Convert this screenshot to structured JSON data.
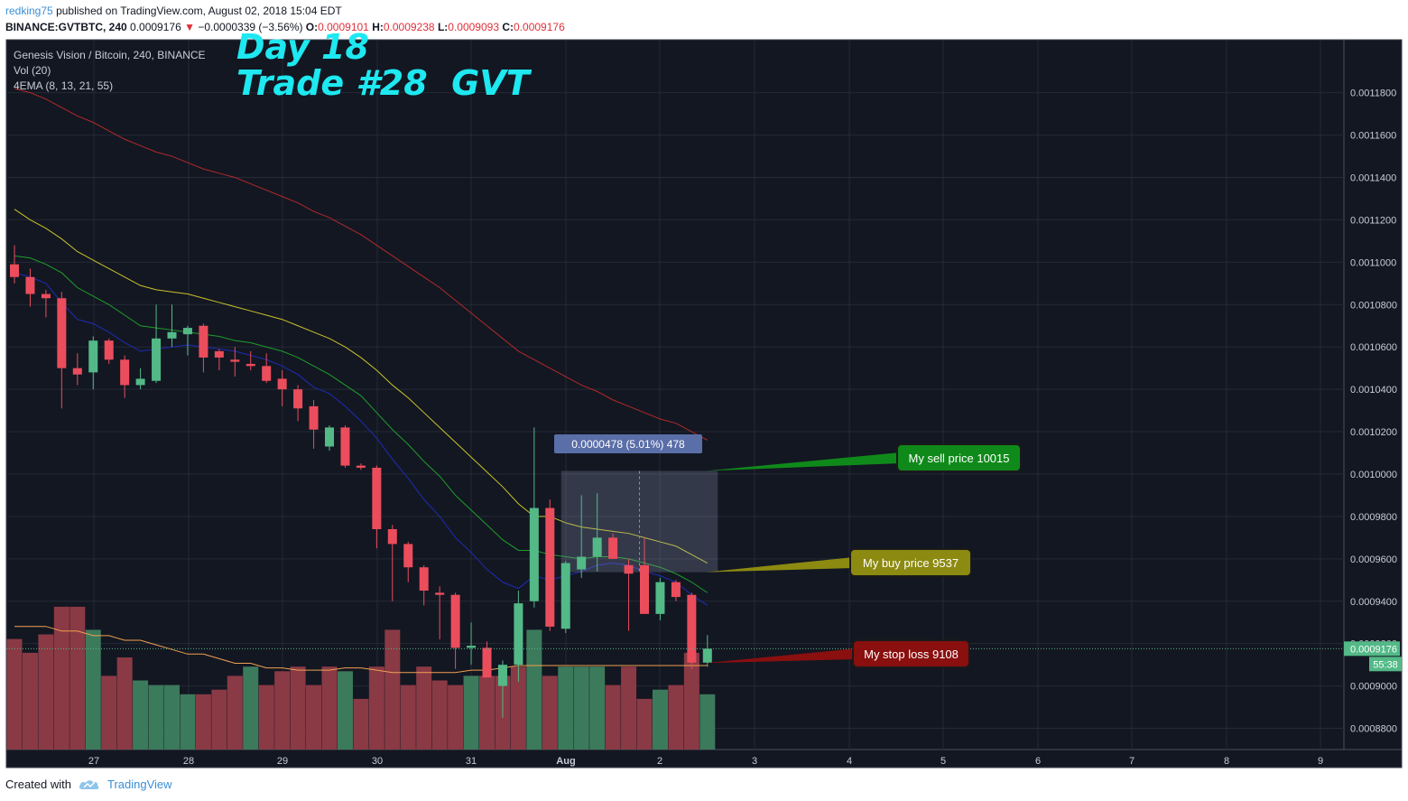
{
  "header": {
    "user": "redking75",
    "published": "published on TradingView.com, August 02, 2018 15:04 EDT"
  },
  "ohlc": {
    "symbol": "BINANCE:GVTBTC, 240",
    "price": "0.0009176",
    "change_arrow": "▼",
    "change": "−0.0000339 (−3.56%)",
    "o_label": "O:",
    "o": "0.0009101",
    "h_label": "H:",
    "h": "0.0009238",
    "l_label": "L:",
    "l": "0.0009093",
    "c_label": "C:",
    "c": "0.0009176"
  },
  "legend": {
    "line1": "Genesis Vision / Bitcoin, 240, BINANCE",
    "line2": "Vol (20)",
    "line3": "4EMA (8, 13, 21, 55)"
  },
  "overlay": {
    "line1": "Day 18",
    "line2": "Trade #28  GVT"
  },
  "footer": {
    "created": "Created with",
    "brand": "TradingView"
  },
  "colors": {
    "background": "#131722",
    "up": "#53b987",
    "down": "#eb4d5c",
    "vol_up": "#3c7a5c",
    "vol_down": "#8a3a45",
    "ema8": "#1f2bb5",
    "ema13": "#1e9e2a",
    "ema21": "#c8c22a",
    "ema55": "#b02a2a",
    "vol_ma": "#f0a050"
  },
  "chart_data": {
    "type": "candlestick",
    "y_axis": {
      "range": [
        0.00087,
        0.001205
      ],
      "ticks": [
        "0.0008800",
        "0.0009000",
        "0.0009200",
        "0.0009400",
        "0.0009600",
        "0.0009800",
        "0.0010000",
        "0.0010200",
        "0.0010400",
        "0.0010600",
        "0.0010800",
        "0.0011000",
        "0.0011200",
        "0.0011400",
        "0.0011600",
        "0.0011800"
      ],
      "last_price_label": "0.0009176",
      "countdown_label": "55:38"
    },
    "x_axis": {
      "ticks": [
        "27",
        "28",
        "29",
        "30",
        "31",
        "Aug",
        "2",
        "3",
        "4",
        "5",
        "6",
        "7",
        "8",
        "9"
      ]
    },
    "candles": [
      [
        0.001099,
        0.001108,
        0.00109,
        0.001093
      ],
      [
        0.001093,
        0.001097,
        0.001079,
        0.001085
      ],
      [
        0.001085,
        0.001087,
        0.001074,
        0.001083
      ],
      [
        0.001083,
        0.001086,
        0.001031,
        0.00105
      ],
      [
        0.00105,
        0.001057,
        0.001042,
        0.001047
      ],
      [
        0.001048,
        0.001065,
        0.00104,
        0.001063
      ],
      [
        0.001063,
        0.001064,
        0.001052,
        0.001054
      ],
      [
        0.001054,
        0.001056,
        0.001036,
        0.001042
      ],
      [
        0.001042,
        0.00105,
        0.00104,
        0.001045
      ],
      [
        0.001044,
        0.00108,
        0.001043,
        0.001064
      ],
      [
        0.001064,
        0.00108,
        0.00106,
        0.001067
      ],
      [
        0.001066,
        0.00107,
        0.001056,
        0.001069
      ],
      [
        0.00107,
        0.001071,
        0.001048,
        0.001055
      ],
      [
        0.001058,
        0.001059,
        0.001049,
        0.001055
      ],
      [
        0.001054,
        0.00106,
        0.001046,
        0.001053
      ],
      [
        0.001052,
        0.001058,
        0.001049,
        0.001051
      ],
      [
        0.001051,
        0.001057,
        0.001043,
        0.001044
      ],
      [
        0.001045,
        0.001049,
        0.001032,
        0.00104
      ],
      [
        0.00104,
        0.001042,
        0.001025,
        0.001031
      ],
      [
        0.001032,
        0.001035,
        0.001012,
        0.001021
      ],
      [
        0.001013,
        0.001023,
        0.001011,
        0.001022
      ],
      [
        0.001022,
        0.001023,
        0.001003,
        0.001004
      ],
      [
        0.001004,
        0.001005,
        0.001002,
        0.001003
      ],
      [
        0.001003,
        0.001004,
        0.000965,
        0.000974
      ],
      [
        0.000974,
        0.000976,
        0.00094,
        0.000967
      ],
      [
        0.000967,
        0.000968,
        0.000949,
        0.000956
      ],
      [
        0.000956,
        0.000957,
        0.000938,
        0.000945
      ],
      [
        0.000944,
        0.000947,
        0.000922,
        0.000943
      ],
      [
        0.000943,
        0.000944,
        0.000908,
        0.000918
      ],
      [
        0.000918,
        0.00093,
        0.00091,
        0.000919
      ],
      [
        0.000918,
        0.000921,
        0.000906,
        0.000904
      ],
      [
        0.0009,
        0.000912,
        0.000885,
        0.00091
      ],
      [
        0.00091,
        0.000945,
        0.000902,
        0.000939
      ],
      [
        0.00094,
        0.001022,
        0.000937,
        0.000984
      ],
      [
        0.000984,
        0.000988,
        0.000926,
        0.000928
      ],
      [
        0.000927,
        0.000959,
        0.000925,
        0.000958
      ],
      [
        0.000955,
        0.00099,
        0.000951,
        0.000961
      ],
      [
        0.000961,
        0.000991,
        0.000954,
        0.00097
      ],
      [
        0.00097,
        0.000972,
        0.00096,
        0.00096
      ],
      [
        0.000957,
        0.00096,
        0.000926,
        0.000953
      ],
      [
        0.000957,
        0.00097,
        0.000935,
        0.000934
      ],
      [
        0.000934,
        0.000951,
        0.000931,
        0.000949
      ],
      [
        0.000949,
        0.00095,
        0.00094,
        0.000942
      ],
      [
        0.000943,
        0.000944,
        0.000908,
        0.000911
      ],
      [
        0.000911,
        0.000924,
        0.000909,
        0.0009176
      ]
    ],
    "volume": [
      [
        0.24,
        "d"
      ],
      [
        0.21,
        "d"
      ],
      [
        0.25,
        "d"
      ],
      [
        0.31,
        "d"
      ],
      [
        0.31,
        "d"
      ],
      [
        0.26,
        "u"
      ],
      [
        0.16,
        "d"
      ],
      [
        0.2,
        "d"
      ],
      [
        0.15,
        "u"
      ],
      [
        0.14,
        "u"
      ],
      [
        0.14,
        "u"
      ],
      [
        0.12,
        "u"
      ],
      [
        0.12,
        "d"
      ],
      [
        0.13,
        "d"
      ],
      [
        0.16,
        "d"
      ],
      [
        0.18,
        "u"
      ],
      [
        0.14,
        "d"
      ],
      [
        0.17,
        "d"
      ],
      [
        0.18,
        "d"
      ],
      [
        0.14,
        "d"
      ],
      [
        0.18,
        "d"
      ],
      [
        0.17,
        "u"
      ],
      [
        0.11,
        "d"
      ],
      [
        0.18,
        "d"
      ],
      [
        0.26,
        "d"
      ],
      [
        0.14,
        "d"
      ],
      [
        0.18,
        "d"
      ],
      [
        0.15,
        "d"
      ],
      [
        0.14,
        "d"
      ],
      [
        0.16,
        "u"
      ],
      [
        0.16,
        "d"
      ],
      [
        0.16,
        "d"
      ],
      [
        0.18,
        "d"
      ],
      [
        0.26,
        "u"
      ],
      [
        0.16,
        "d"
      ],
      [
        0.18,
        "u"
      ],
      [
        0.18,
        "u"
      ],
      [
        0.18,
        "u"
      ],
      [
        0.14,
        "d"
      ],
      [
        0.18,
        "d"
      ],
      [
        0.11,
        "d"
      ],
      [
        0.13,
        "u"
      ],
      [
        0.14,
        "d"
      ],
      [
        0.21,
        "d"
      ],
      [
        0.12,
        "u"
      ]
    ],
    "ema8": [
      0.001095,
      0.001093,
      0.00109,
      0.001081,
      0.001073,
      0.001071,
      0.001067,
      0.001062,
      0.001058,
      0.001059,
      0.00106,
      0.001061,
      0.00106,
      0.001059,
      0.001058,
      0.001056,
      0.001054,
      0.001051,
      0.001047,
      0.001041,
      0.001038,
      0.001032,
      0.001025,
      0.001017,
      0.001007,
      0.000998,
      0.000988,
      0.00098,
      0.00097,
      0.000963,
      0.000955,
      0.000949,
      0.000946,
      0.000952,
      0.00095,
      0.000952,
      0.000954,
      0.000957,
      0.000958,
      0.000957,
      0.000954,
      0.000952,
      0.000949,
      0.000943,
      0.000938
    ],
    "ema13": [
      0.001103,
      0.001102,
      0.001099,
      0.001095,
      0.001088,
      0.001084,
      0.00108,
      0.001075,
      0.00107,
      0.001069,
      0.001068,
      0.001067,
      0.001066,
      0.001065,
      0.001063,
      0.001062,
      0.00106,
      0.001058,
      0.001055,
      0.001051,
      0.001047,
      0.001042,
      0.001037,
      0.001029,
      0.001021,
      0.001014,
      0.001006,
      0.000999,
      0.00099,
      0.000983,
      0.000976,
      0.000969,
      0.000964,
      0.000964,
      0.000962,
      0.000961,
      0.00096,
      0.000961,
      0.000961,
      0.00096,
      0.000958,
      0.000956,
      0.000953,
      0.000949,
      0.000944
    ],
    "ema21": [
      0.001125,
      0.00112,
      0.001116,
      0.001111,
      0.001105,
      0.001101,
      0.001097,
      0.001093,
      0.001089,
      0.001087,
      0.001086,
      0.001085,
      0.001083,
      0.001081,
      0.001079,
      0.001077,
      0.001075,
      0.001073,
      0.00107,
      0.001067,
      0.001064,
      0.00106,
      0.001055,
      0.001049,
      0.001042,
      0.001036,
      0.001029,
      0.001022,
      0.001015,
      0.001008,
      0.001001,
      0.000994,
      0.000986,
      0.00098,
      0.00098,
      0.000977,
      0.000975,
      0.000974,
      0.000973,
      0.000972,
      0.00097,
      0.000968,
      0.000966,
      0.000962,
      0.000958
    ],
    "ema55": [
      0.001182,
      0.00118,
      0.001177,
      0.001173,
      0.001169,
      0.001166,
      0.001162,
      0.001158,
      0.001155,
      0.001152,
      0.00115,
      0.001147,
      0.001144,
      0.001142,
      0.00114,
      0.001137,
      0.001134,
      0.001131,
      0.001128,
      0.001124,
      0.001121,
      0.001117,
      0.001113,
      0.001108,
      0.001103,
      0.001098,
      0.001093,
      0.001088,
      0.001082,
      0.001076,
      0.00107,
      0.001064,
      0.001058,
      0.001054,
      0.00105,
      0.001046,
      0.001042,
      0.001039,
      0.001035,
      0.001032,
      0.001029,
      0.001026,
      0.001024,
      0.00102,
      0.001016
    ],
    "vol_ma": [
      0.13,
      0.13,
      0.13,
      0.12,
      0.12,
      0.11,
      0.11,
      0.1,
      0.1,
      0.09,
      0.08,
      0.07,
      0.07,
      0.06,
      0.05,
      0.05,
      0.04,
      0.04,
      0.035,
      0.035,
      0.035,
      0.04,
      0.04,
      0.035,
      0.03,
      0.03,
      0.03,
      0.03,
      0.03,
      0.035,
      0.035,
      0.04,
      0.045,
      0.045,
      0.045,
      0.045,
      0.045,
      0.045,
      0.045,
      0.045,
      0.045,
      0.045,
      0.045,
      0.045,
      0.045
    ],
    "measure": {
      "label": "0.0000478 (5.01%) 478",
      "from_price": 0.0009537,
      "to_price": 0.0010015,
      "start_index": 35,
      "end_index": 45
    },
    "annotations": [
      {
        "label": "My sell price 10015",
        "price": 0.0010015,
        "color": "#0f8a1a"
      },
      {
        "label": "My buy price 9537",
        "price": 0.0009537,
        "color": "#8c8a10"
      },
      {
        "label": "My stop loss 9108",
        "price": 0.0009108,
        "color": "#8a0f0f"
      }
    ]
  }
}
